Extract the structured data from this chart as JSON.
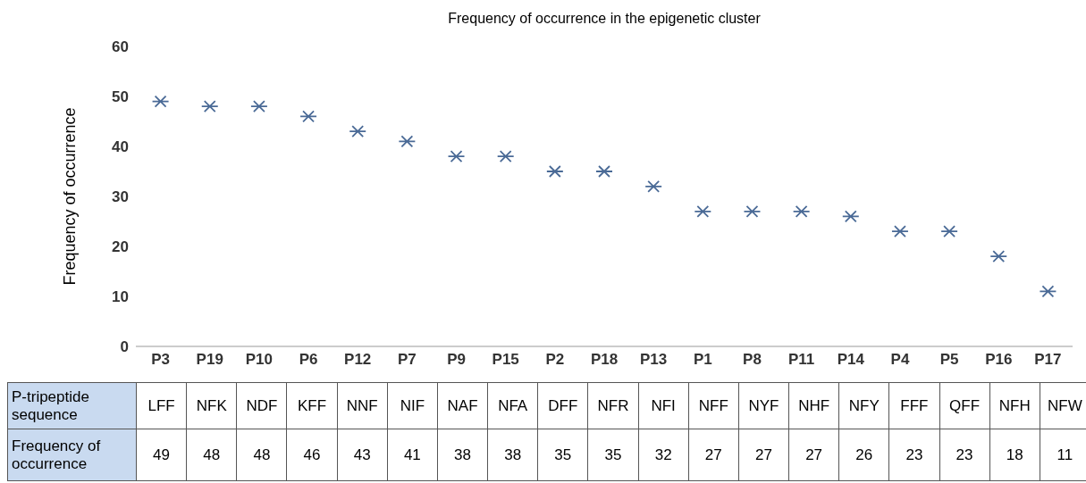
{
  "chart_data": {
    "type": "scatter",
    "title": "Frequency of occurrence in the epigenetic cluster",
    "ylabel": "Frequency of occurrence",
    "categories": [
      "P3",
      "P19",
      "P10",
      "P6",
      "P12",
      "P7",
      "P9",
      "P15",
      "P2",
      "P18",
      "P13",
      "P1",
      "P8",
      "P11",
      "P14",
      "P4",
      "P5",
      "P16",
      "P17"
    ],
    "values": [
      49,
      48,
      48,
      46,
      43,
      41,
      38,
      38,
      35,
      35,
      32,
      27,
      27,
      27,
      26,
      23,
      23,
      18,
      11
    ],
    "color": "#4a6a96",
    "marker": "cross",
    "ylim": [
      0,
      60
    ],
    "yticks": [
      0,
      10,
      20,
      30,
      40,
      50,
      60
    ],
    "grid": false,
    "legend": false,
    "data_labels": true,
    "annotations": [
      "P-tripeptide sequence",
      "Frequency of occurrence",
      "LFF",
      "NFK",
      "NDF",
      "KFF",
      "NNF",
      "NIF",
      "NAF",
      "NFA",
      "DFF",
      "NFR",
      "NFI",
      "NFF",
      "NYF",
      "NHF",
      "NFY",
      "FFF",
      "QFF",
      "NFH",
      "NFW"
    ]
  }
}
